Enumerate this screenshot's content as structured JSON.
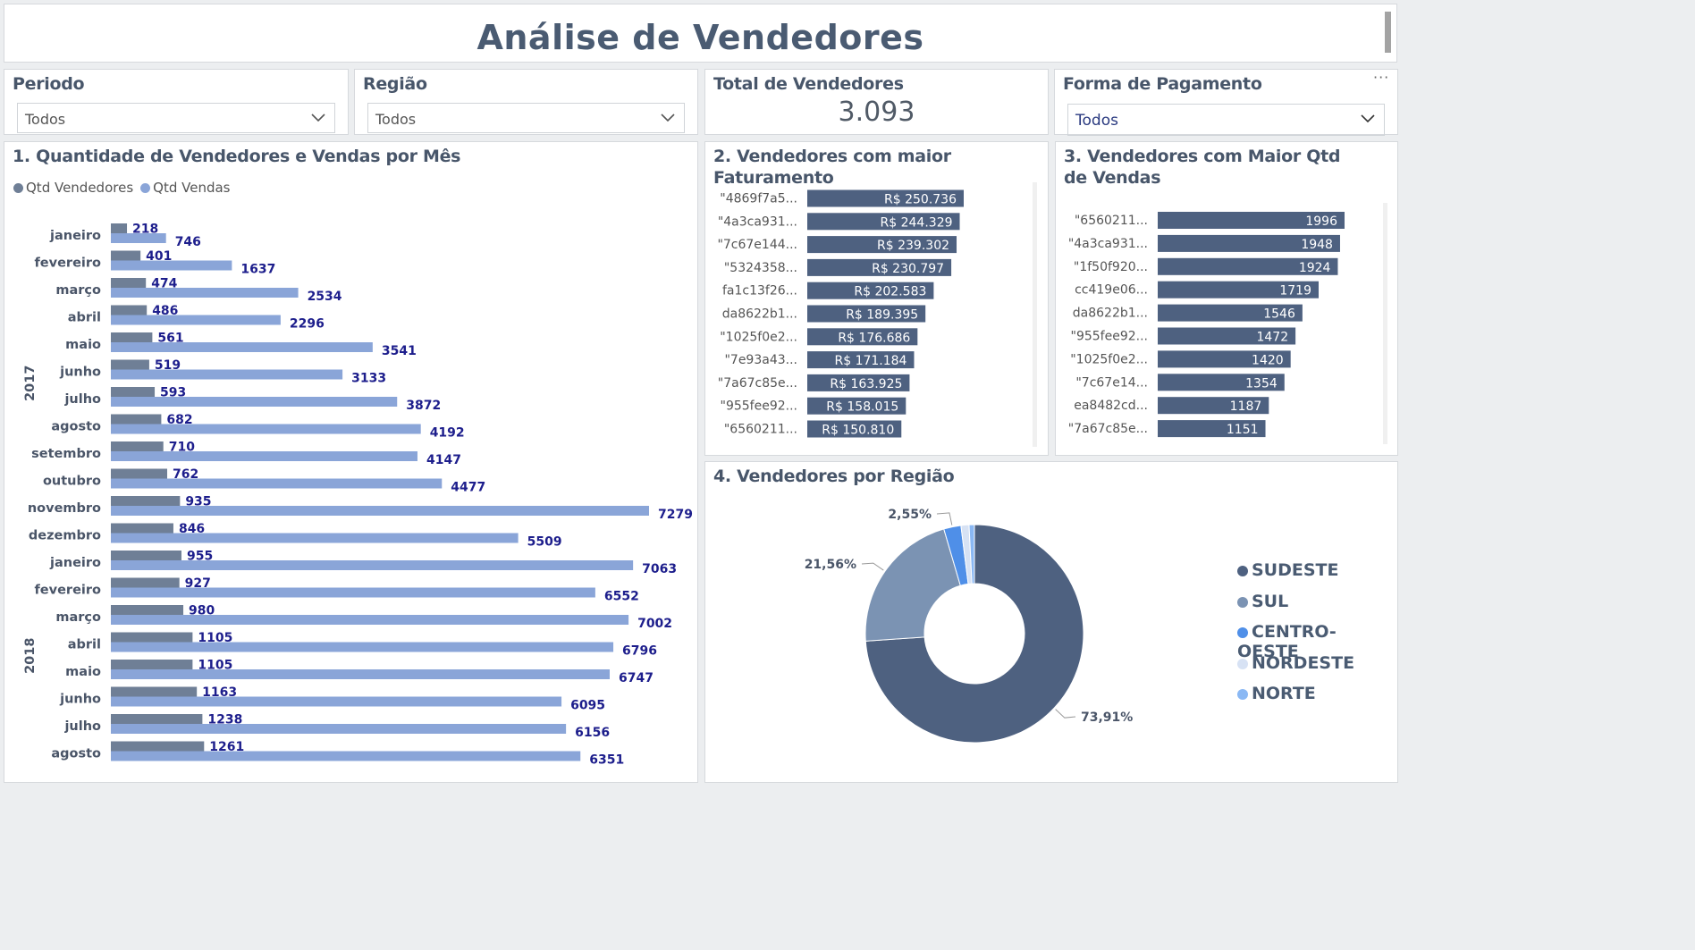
{
  "page_title": "Análise de Vendedores",
  "filters": {
    "periodo": {
      "label": "Periodo",
      "value": "Todos"
    },
    "regiao": {
      "label": "Região",
      "value": "Todos"
    },
    "forma_pagamento": {
      "label": "Forma de Pagamento",
      "value": "Todos"
    }
  },
  "kpi": {
    "label": "Total de Vendedores",
    "value": "3.093"
  },
  "colors": {
    "vendedores": "#6f7f96",
    "vendas": "#8aa5d8",
    "bar_dark": "#4e6180",
    "label_text": "#1d1e8c"
  },
  "chart_data": [
    {
      "type": "bar",
      "orientation": "horizontal",
      "title": "1. Quantidade de Vendedores e Vendas por Mês",
      "groups": [
        {
          "label": "2017",
          "categories": [
            "janeiro",
            "fevereiro",
            "março",
            "abril",
            "maio",
            "junho",
            "julho",
            "agosto",
            "setembro",
            "outubro",
            "novembro",
            "dezembro"
          ]
        },
        {
          "label": "2018",
          "categories": [
            "janeiro",
            "fevereiro",
            "março",
            "abril",
            "maio",
            "junho",
            "julho",
            "agosto"
          ]
        }
      ],
      "series": [
        {
          "name": "Qtd Vendedores",
          "color": "#6f7f96",
          "values": [
            218,
            401,
            474,
            486,
            561,
            519,
            593,
            682,
            710,
            762,
            935,
            846,
            955,
            927,
            980,
            1105,
            1105,
            1163,
            1238,
            1261
          ]
        },
        {
          "name": "Qtd Vendas",
          "color": "#8aa5d8",
          "values": [
            746,
            1637,
            2534,
            2296,
            3541,
            3133,
            3872,
            4192,
            4147,
            4477,
            7279,
            5509,
            7063,
            6552,
            7002,
            6796,
            6747,
            6095,
            6156,
            6351
          ]
        }
      ],
      "xlim": [
        0,
        7279
      ],
      "legend": "top-left"
    },
    {
      "type": "bar",
      "orientation": "horizontal",
      "title": "2. Vendedores com maior Faturamento",
      "categories": [
        "\"4869f7a5...",
        "\"4a3ca931...",
        "\"7c67e144...",
        "\"5324358...",
        "fa1c13f26...",
        "da8622b1...",
        "\"1025f0e2...",
        "\"7e93a43...",
        "\"7a67c85e...",
        "\"955fee92...",
        "\"6560211..."
      ],
      "values": [
        250736,
        244329,
        239302,
        230797,
        202583,
        189395,
        176686,
        171184,
        163925,
        158015,
        150810
      ],
      "value_labels": [
        "R$ 250.736",
        "R$ 244.329",
        "R$ 239.302",
        "R$ 230.797",
        "R$ 202.583",
        "R$ 189.395",
        "R$ 176.686",
        "R$ 171.184",
        "R$ 163.925",
        "R$ 158.015",
        "R$ 150.810"
      ],
      "color": "#4e6180"
    },
    {
      "type": "bar",
      "orientation": "horizontal",
      "title": "3. Vendedores com Maior Qtd de Vendas",
      "categories": [
        "\"6560211...",
        "\"4a3ca931...",
        "\"1f50f920...",
        "cc419e06...",
        "da8622b1...",
        "\"955fee92...",
        "\"1025f0e2...",
        "\"7c67e14...",
        "ea8482cd...",
        "\"7a67c85e..."
      ],
      "values": [
        1996,
        1948,
        1924,
        1719,
        1546,
        1472,
        1420,
        1354,
        1187,
        1151
      ],
      "color": "#4e6180"
    },
    {
      "type": "pie",
      "donut": true,
      "title": "4. Vendedores por Região",
      "slices": [
        {
          "name": "SUDESTE",
          "value": 73.91,
          "label": "73,91%",
          "color": "#4e6180"
        },
        {
          "name": "SUL",
          "value": 21.56,
          "label": "21,56%",
          "color": "#7b93b3"
        },
        {
          "name": "CENTRO-OESTE",
          "value": 2.55,
          "label": "2,55%",
          "color": "#4f8fe8"
        },
        {
          "name": "NORDESTE",
          "value": 1.19,
          "label": "",
          "color": "#d7e2f4"
        },
        {
          "name": "NORTE",
          "value": 0.79,
          "label": "",
          "color": "#8ab8f4"
        }
      ],
      "legend": "right"
    }
  ]
}
